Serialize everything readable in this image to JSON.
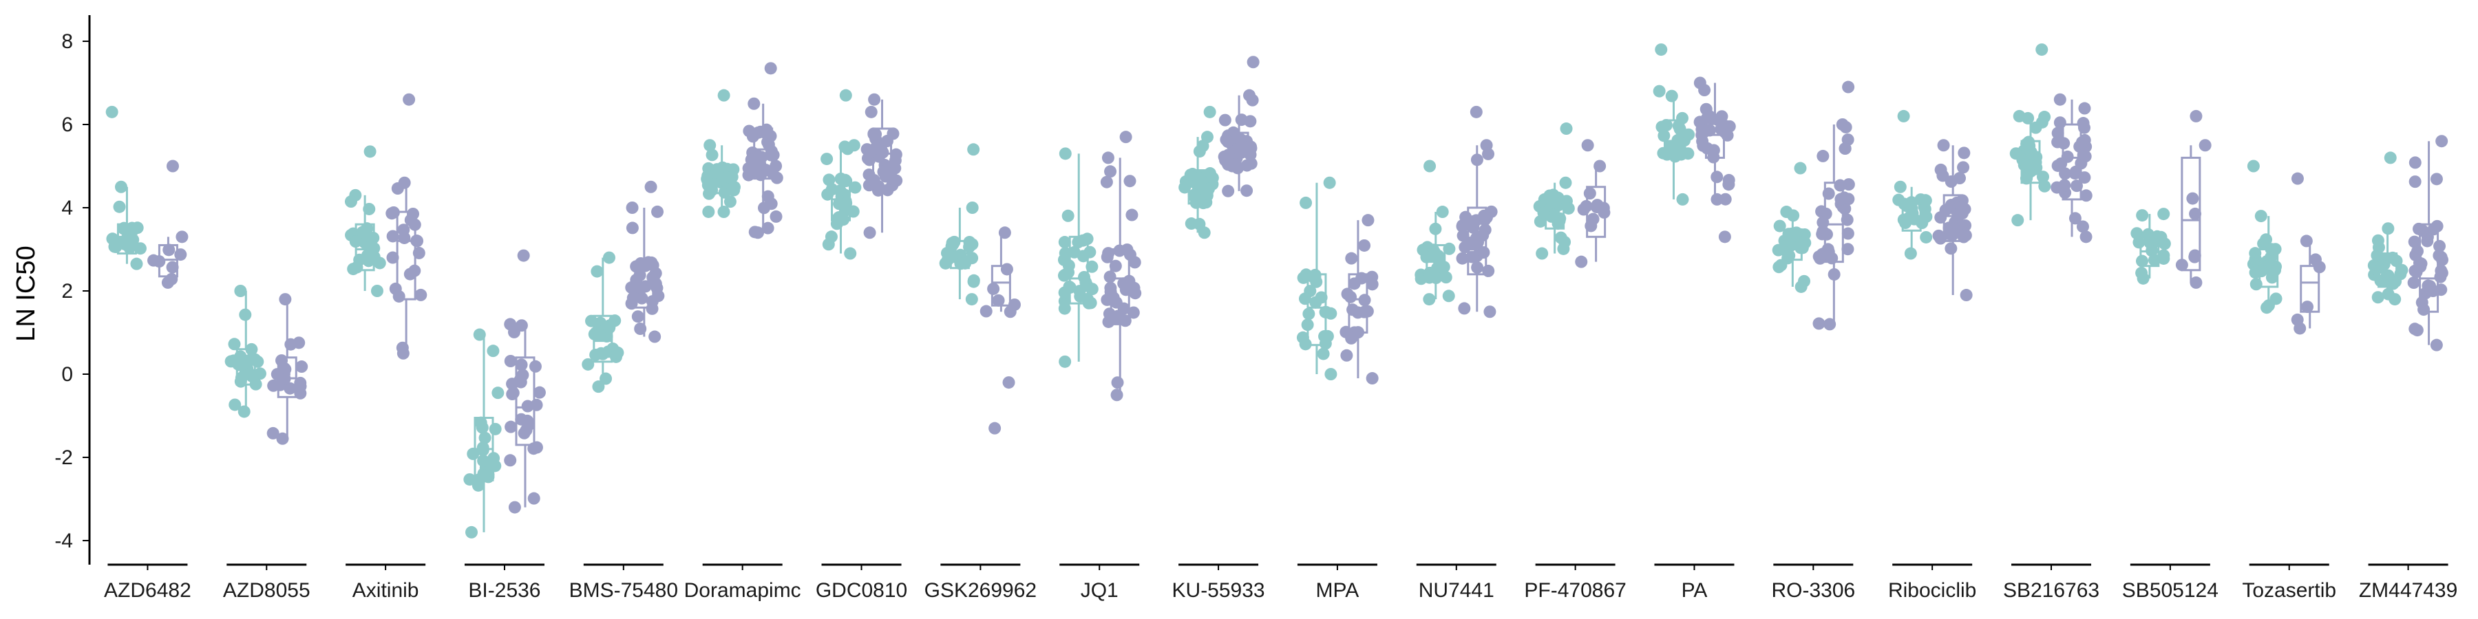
{
  "chart_data": {
    "type": "scatter",
    "subtype": "grouped box plot with jittered points",
    "ylabel": "LN IC50",
    "xlabel": "",
    "ylim": [
      -4.4,
      8.5
    ],
    "yticks": [
      -4,
      -2,
      0,
      2,
      4,
      6,
      8
    ],
    "ytick_labels": [
      "-4",
      "-2",
      "0",
      "2",
      "4",
      "6",
      "8"
    ],
    "legend": "none",
    "grid": false,
    "categories": [
      "AZD6482",
      "AZD8055",
      "Axitinib",
      "BI-2536",
      "BMS-75480",
      "Doramapimc",
      "GDC0810",
      "GSK269962",
      "JQ1",
      "KU-55933",
      "MPA",
      "NU7441",
      "PF-470867",
      "PA",
      "RO-3306",
      "Ribociclib",
      "SB216763",
      "SB505124",
      "Tozasertib",
      "ZM447439"
    ],
    "colors": [
      "#8DC8C8",
      "#9B9EC4"
    ],
    "series": [
      {
        "values": [
          {
            "min": 2.65,
            "q1": 2.9,
            "median": 3.3,
            "q3": 3.6,
            "max": 4.5,
            "outliers": [
              6.3
            ],
            "n": 22
          },
          {
            "min": -0.9,
            "q1": -0.25,
            "median": 0.1,
            "q3": 0.6,
            "max": 2.0,
            "outliers": [],
            "n": 24
          },
          {
            "min": 2.0,
            "q1": 2.5,
            "median": 3.0,
            "q3": 3.6,
            "max": 4.3,
            "outliers": [
              5.35
            ],
            "n": 26
          },
          {
            "min": -3.8,
            "q1": -2.55,
            "median": -1.8,
            "q3": -1.05,
            "max": 0.95,
            "outliers": [],
            "n": 24
          },
          {
            "min": -0.3,
            "q1": 0.3,
            "median": 0.8,
            "q3": 1.4,
            "max": 2.8,
            "outliers": [],
            "n": 24
          },
          {
            "min": 3.9,
            "q1": 4.35,
            "median": 4.7,
            "q3": 5.0,
            "max": 5.5,
            "outliers": [
              6.7
            ],
            "n": 32
          },
          {
            "min": 2.9,
            "q1": 3.7,
            "median": 4.2,
            "q3": 4.7,
            "max": 5.5,
            "outliers": [
              6.7
            ],
            "n": 30
          },
          {
            "min": 1.8,
            "q1": 2.55,
            "median": 2.9,
            "q3": 3.2,
            "max": 4.0,
            "outliers": [
              5.4
            ],
            "n": 24
          },
          {
            "min": 0.3,
            "q1": 1.7,
            "median": 2.3,
            "q3": 3.3,
            "max": 5.3,
            "outliers": [],
            "n": 32
          },
          {
            "min": 3.4,
            "q1": 4.1,
            "median": 4.5,
            "q3": 4.9,
            "max": 5.7,
            "outliers": [
              6.3
            ],
            "n": 34
          },
          {
            "min": 0.0,
            "q1": 0.7,
            "median": 1.6,
            "q3": 2.4,
            "max": 4.6,
            "outliers": [],
            "n": 24
          },
          {
            "min": 1.8,
            "q1": 2.3,
            "median": 2.7,
            "q3": 3.1,
            "max": 3.9,
            "outliers": [
              5.0
            ],
            "n": 28
          },
          {
            "min": 2.9,
            "q1": 3.5,
            "median": 3.85,
            "q3": 4.2,
            "max": 4.6,
            "outliers": [
              5.9
            ],
            "n": 26
          },
          {
            "min": 4.2,
            "q1": 5.2,
            "median": 5.6,
            "q3": 6.1,
            "max": 6.8,
            "outliers": [
              7.8
            ],
            "n": 24
          },
          {
            "min": 2.1,
            "q1": 2.75,
            "median": 3.0,
            "q3": 3.4,
            "max": 3.9,
            "outliers": [
              4.95
            ],
            "n": 28
          },
          {
            "min": 2.9,
            "q1": 3.45,
            "median": 3.8,
            "q3": 4.2,
            "max": 4.5,
            "outliers": [
              6.2
            ],
            "n": 24
          },
          {
            "min": 3.7,
            "q1": 4.6,
            "median": 5.1,
            "q3": 5.6,
            "max": 6.2,
            "outliers": [
              7.8
            ],
            "n": 30
          },
          {
            "min": 2.3,
            "q1": 2.6,
            "median": 2.95,
            "q3": 3.3,
            "max": 3.85,
            "outliers": [],
            "n": 20
          },
          {
            "min": 1.6,
            "q1": 2.1,
            "median": 2.5,
            "q3": 3.0,
            "max": 3.8,
            "outliers": [
              5.0
            ],
            "n": 24
          },
          {
            "min": 1.8,
            "q1": 2.1,
            "median": 2.35,
            "q3": 2.9,
            "max": 3.5,
            "outliers": [
              5.2
            ],
            "n": 24
          }
        ]
      },
      {
        "values": [
          {
            "min": 2.2,
            "q1": 2.35,
            "median": 2.75,
            "q3": 3.1,
            "max": 3.3,
            "outliers": [
              5.0
            ],
            "n": 9
          },
          {
            "min": -1.55,
            "q1": -0.55,
            "median": -0.1,
            "q3": 0.4,
            "max": 1.8,
            "outliers": [],
            "n": 20
          },
          {
            "min": 0.5,
            "q1": 1.8,
            "median": 3.2,
            "q3": 3.9,
            "max": 4.6,
            "outliers": [
              6.6
            ],
            "n": 22
          },
          {
            "min": -3.2,
            "q1": -1.7,
            "median": -0.8,
            "q3": 0.4,
            "max": 1.2,
            "outliers": [
              2.85
            ],
            "n": 28
          },
          {
            "min": 0.9,
            "q1": 1.6,
            "median": 2.2,
            "q3": 2.7,
            "max": 4.0,
            "outliers": [
              4.5
            ],
            "n": 30
          },
          {
            "min": 3.4,
            "q1": 4.7,
            "median": 5.4,
            "q3": 5.9,
            "max": 6.5,
            "outliers": [
              7.35
            ],
            "n": 38
          },
          {
            "min": 3.4,
            "q1": 4.5,
            "median": 5.3,
            "q3": 5.9,
            "max": 6.6,
            "outliers": [],
            "n": 36
          },
          {
            "min": 1.5,
            "q1": 1.65,
            "median": 2.2,
            "q3": 2.6,
            "max": 3.4,
            "outliers": [
              -0.2,
              -1.3
            ],
            "n": 9
          },
          {
            "min": -0.5,
            "q1": 1.2,
            "median": 2.3,
            "q3": 3.0,
            "max": 5.2,
            "outliers": [
              5.7
            ],
            "n": 34
          },
          {
            "min": 4.4,
            "q1": 4.95,
            "median": 5.3,
            "q3": 5.8,
            "max": 6.7,
            "outliers": [
              7.5
            ],
            "n": 38
          },
          {
            "min": -0.1,
            "q1": 1.0,
            "median": 1.8,
            "q3": 2.4,
            "max": 3.7,
            "outliers": [],
            "n": 20
          },
          {
            "min": 1.5,
            "q1": 2.4,
            "median": 3.0,
            "q3": 4.0,
            "max": 5.5,
            "outliers": [
              6.3
            ],
            "n": 34
          },
          {
            "min": 2.7,
            "q1": 3.3,
            "median": 4.05,
            "q3": 4.5,
            "max": 5.0,
            "outliers": [
              5.5
            ],
            "n": 12
          },
          {
            "min": 4.2,
            "q1": 5.2,
            "median": 5.75,
            "q3": 6.2,
            "max": 7.0,
            "outliers": [
              3.3
            ],
            "n": 34
          },
          {
            "min": 1.2,
            "q1": 2.7,
            "median": 3.6,
            "q3": 4.6,
            "max": 6.0,
            "outliers": [
              6.9
            ],
            "n": 36
          },
          {
            "min": 1.9,
            "q1": 3.2,
            "median": 3.8,
            "q3": 4.3,
            "max": 5.5,
            "outliers": [],
            "n": 36
          },
          {
            "min": 3.3,
            "q1": 4.2,
            "median": 5.2,
            "q3": 6.0,
            "max": 6.6,
            "outliers": [],
            "n": 30
          },
          {
            "min": 2.2,
            "q1": 2.5,
            "median": 3.7,
            "q3": 5.2,
            "max": 5.5,
            "outliers": [
              6.2
            ],
            "n": 8
          },
          {
            "min": 1.1,
            "q1": 1.5,
            "median": 2.2,
            "q3": 2.6,
            "max": 3.2,
            "outliers": [
              4.7
            ],
            "n": 7
          },
          {
            "min": 0.7,
            "q1": 1.5,
            "median": 2.3,
            "q3": 3.6,
            "max": 5.6,
            "outliers": [],
            "n": 36
          }
        ]
      }
    ]
  }
}
